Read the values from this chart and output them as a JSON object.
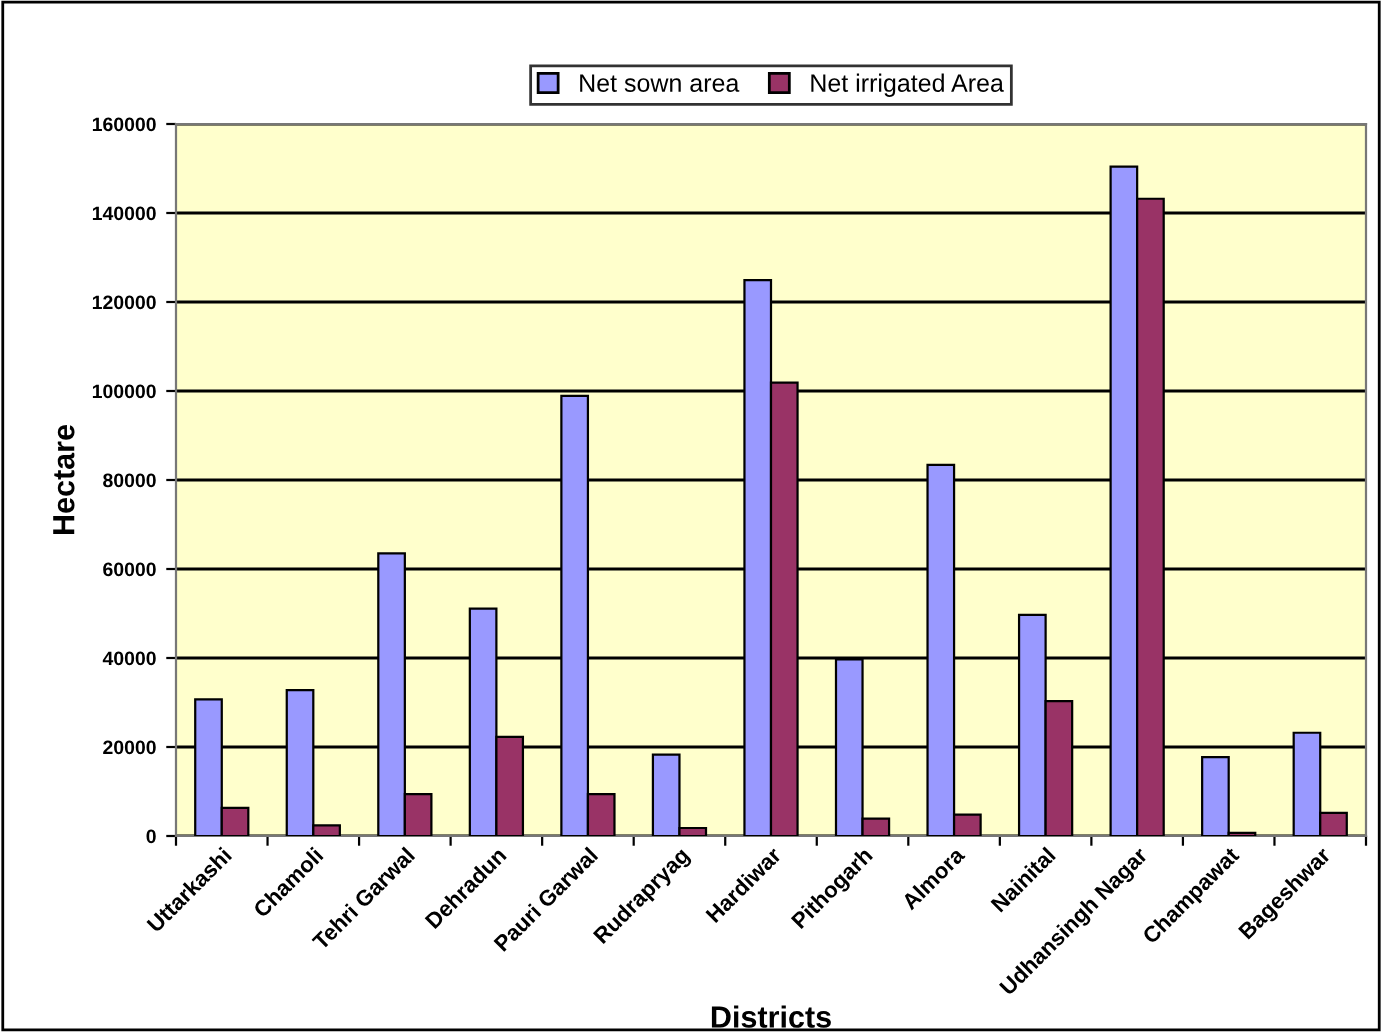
{
  "chart_data": {
    "type": "bar",
    "xlabel": "Districts",
    "ylabel": "Hectare",
    "categories": [
      "Uttarkashi",
      "Chamoli",
      "Tehri Garwal",
      "Dehradun",
      "Pauri Garwal",
      "Rudrapryag",
      "Hardiwar",
      "Pithogarh",
      "Almora",
      "Nainital",
      "Udhansingh Nagar",
      "Champawat",
      "Bageshwar"
    ],
    "series": [
      {
        "name": "Net sown area",
        "color": "#9999ff",
        "values": [
          30700,
          32800,
          63500,
          51100,
          98900,
          18300,
          124900,
          39700,
          83400,
          49700,
          150400,
          17700,
          23200
        ]
      },
      {
        "name": "Net irrigated Area",
        "color": "#993366",
        "values": [
          6300,
          2400,
          9400,
          22300,
          9400,
          1800,
          101900,
          3900,
          4800,
          30300,
          143200,
          700,
          5200
        ]
      }
    ],
    "ylim": [
      0,
      160000
    ],
    "yticks": [
      0,
      20000,
      40000,
      60000,
      80000,
      100000,
      120000,
      140000,
      160000
    ],
    "grid": "y",
    "legend": "top"
  }
}
